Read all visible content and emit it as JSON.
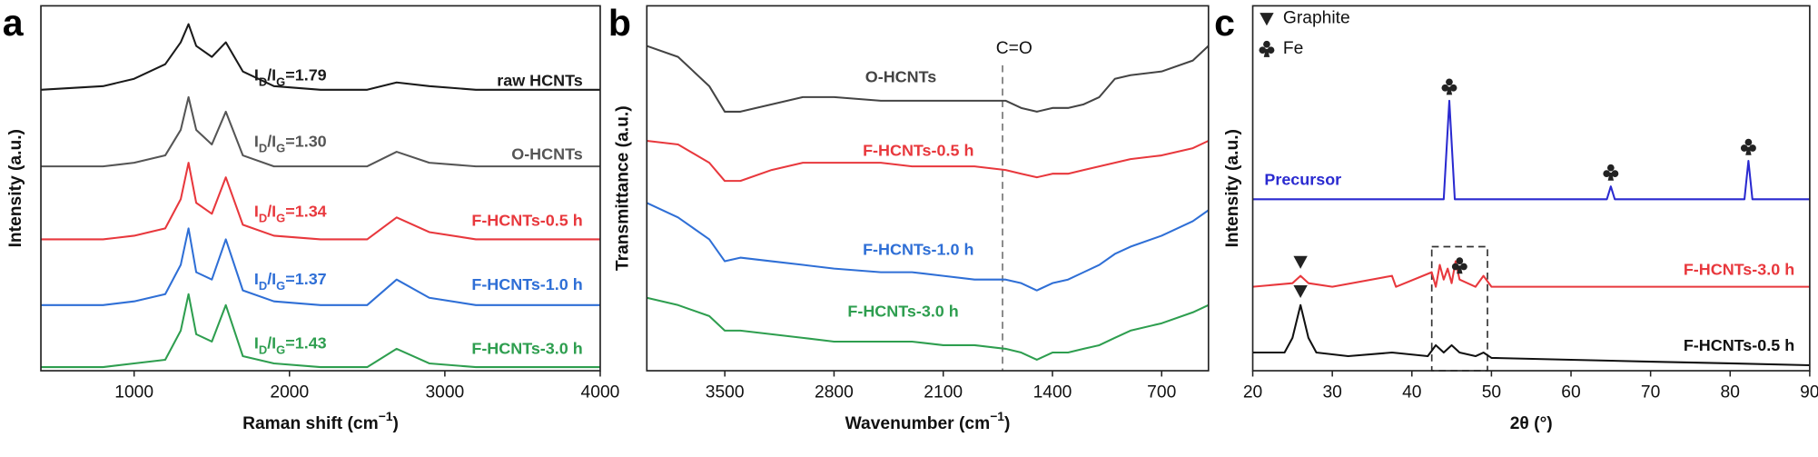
{
  "chart_data": [
    {
      "type": "line",
      "label": "a",
      "xlabel": [
        {
          "text": "Raman shift (cm"
        },
        {
          "text": "−1",
          "sup": true
        },
        {
          "text": ")"
        }
      ],
      "ylabel": "Intensity (a.u.)",
      "xlim": [
        400,
        4000
      ],
      "xticks": [
        1000,
        2000,
        3000,
        4000
      ],
      "ylim": [
        0,
        100
      ],
      "x": [
        400,
        800,
        1000,
        1200,
        1300,
        1350,
        1400,
        1500,
        1590,
        1700,
        1900,
        2200,
        2500,
        2690,
        2900,
        3200,
        3600,
        4000
      ],
      "series": [
        {
          "name": "raw HCNTs",
          "color": "#1a1a1a",
          "values": [
            77,
            78,
            80,
            84,
            90,
            95,
            89,
            86,
            90,
            82,
            78,
            77,
            77,
            79,
            78,
            77,
            77,
            77
          ],
          "annotation": [
            {
              "text": "I"
            },
            {
              "text": "D",
              "sub": true
            },
            {
              "text": "/I"
            },
            {
              "text": "G",
              "sub": true
            },
            {
              "text": "=1.79"
            }
          ]
        },
        {
          "name": "O-HCNTs",
          "color": "#555555",
          "values": [
            56,
            56,
            57,
            59,
            66,
            75,
            66,
            62,
            71,
            59,
            56,
            56,
            56,
            60,
            57,
            56,
            56,
            56
          ],
          "annotation": [
            {
              "text": "I"
            },
            {
              "text": "D",
              "sub": true
            },
            {
              "text": "/I"
            },
            {
              "text": "G",
              "sub": true
            },
            {
              "text": "=1.30"
            }
          ]
        },
        {
          "name": "F-HCNTs-0.5 h",
          "color": "#e8383d",
          "values": [
            36,
            36,
            37,
            39,
            47,
            57,
            46,
            43,
            53,
            40,
            37,
            36,
            36,
            42,
            38,
            36,
            36,
            36
          ],
          "annotation": [
            {
              "text": "I"
            },
            {
              "text": "D",
              "sub": true
            },
            {
              "text": "/I"
            },
            {
              "text": "G",
              "sub": true
            },
            {
              "text": "=1.34"
            }
          ]
        },
        {
          "name": "F-HCNTs-1.0 h",
          "color": "#2f6fd6",
          "values": [
            18,
            18,
            19,
            21,
            29,
            39,
            27,
            25,
            36,
            22,
            19,
            18,
            18,
            25,
            20,
            18,
            18,
            18
          ],
          "annotation": [
            {
              "text": "I"
            },
            {
              "text": "D",
              "sub": true
            },
            {
              "text": "/I"
            },
            {
              "text": "G",
              "sub": true
            },
            {
              "text": "=1.37"
            }
          ]
        },
        {
          "name": "F-HCNTs-3.0 h",
          "color": "#2e9e4f",
          "values": [
            1,
            1,
            2,
            3,
            11,
            21,
            10,
            8,
            18,
            4,
            2,
            1,
            1,
            6,
            2,
            1,
            1,
            1
          ],
          "annotation": [
            {
              "text": "I"
            },
            {
              "text": "D",
              "sub": true
            },
            {
              "text": "/I"
            },
            {
              "text": "G",
              "sub": true
            },
            {
              "text": "=1.43"
            }
          ]
        }
      ]
    },
    {
      "type": "line",
      "label": "b",
      "xlabel": [
        {
          "text": "Wavenumber (cm"
        },
        {
          "text": "−1",
          "sup": true
        },
        {
          "text": ")"
        }
      ],
      "ylabel": "Transmittance (a.u.)",
      "xlim": [
        4000,
        400
      ],
      "xticks": [
        3500,
        2800,
        2100,
        1400,
        700
      ],
      "ylim": [
        0,
        100
      ],
      "annotations": [
        {
          "text": "C=O",
          "x": 1720
        }
      ],
      "x": [
        4000,
        3800,
        3600,
        3500,
        3400,
        3200,
        3000,
        2800,
        2500,
        2300,
        2100,
        1900,
        1700,
        1600,
        1500,
        1400,
        1300,
        1200,
        1100,
        1000,
        900,
        700,
        500,
        400
      ],
      "series": [
        {
          "name": "O-HCNTs",
          "color": "#444444",
          "values": [
            89,
            86,
            78,
            71,
            71,
            73,
            75,
            75,
            74,
            74,
            74,
            74,
            74,
            72,
            71,
            72,
            72,
            73,
            75,
            80,
            81,
            82,
            85,
            89
          ]
        },
        {
          "name": "F-HCNTs-0.5 h",
          "color": "#e8383d",
          "values": [
            63,
            62,
            57,
            52,
            52,
            55,
            57,
            57,
            57,
            56,
            56,
            56,
            55,
            54,
            53,
            54,
            54,
            55,
            56,
            57,
            58,
            59,
            61,
            63
          ]
        },
        {
          "name": "F-HCNTs-1.0 h",
          "color": "#2f6fd6",
          "values": [
            46,
            42,
            36,
            30,
            31,
            30,
            29,
            28,
            27,
            27,
            26,
            25,
            25,
            24,
            22,
            24,
            25,
            27,
            29,
            32,
            34,
            37,
            41,
            44
          ]
        },
        {
          "name": "F-HCNTs-3.0 h",
          "color": "#2e9e4f",
          "values": [
            20,
            18,
            15,
            11,
            11,
            10,
            9,
            8,
            8,
            8,
            7,
            7,
            6,
            5,
            3,
            5,
            5,
            6,
            7,
            9,
            11,
            13,
            16,
            18
          ]
        }
      ]
    },
    {
      "type": "line",
      "label": "c",
      "xlabel": [
        {
          "text": "2θ (°)"
        }
      ],
      "ylabel": "Intensity (a.u.)",
      "xlim": [
        20,
        90
      ],
      "xticks": [
        20,
        30,
        40,
        50,
        60,
        70,
        80,
        90
      ],
      "ylim": [
        0,
        100
      ],
      "legend": [
        {
          "symbol": "triangle",
          "text": "Graphite"
        },
        {
          "symbol": "club",
          "text": "Fe"
        }
      ],
      "highlight": {
        "xlim": [
          42.5,
          49.5
        ],
        "ylim": [
          0,
          34
        ]
      },
      "series": [
        {
          "name": "Precursor",
          "color": "#2a2ad0",
          "x": [
            20,
            30,
            40,
            44,
            44.7,
            45.4,
            50,
            60,
            64.5,
            65,
            65.5,
            70,
            80,
            81.8,
            82.3,
            82.8,
            85,
            90
          ],
          "values": [
            47,
            47,
            47,
            47,
            74,
            47,
            47,
            47,
            47,
            50.5,
            47,
            47,
            47,
            47,
            57.5,
            47,
            47,
            47
          ],
          "markers": [
            {
              "symbol": "club",
              "x": 44.7
            },
            {
              "symbol": "club",
              "x": 65
            },
            {
              "symbol": "club",
              "x": 82.3
            }
          ]
        },
        {
          "name": "F-HCNTs-3.0 h",
          "color": "#e8383d",
          "x": [
            20,
            25,
            26,
            27,
            30,
            37.5,
            38,
            42.5,
            43,
            43.5,
            44,
            44.5,
            45,
            45.5,
            46,
            48,
            49,
            50,
            60,
            70,
            80,
            90
          ],
          "values": [
            23,
            24,
            26,
            24,
            23,
            26,
            23,
            27,
            23,
            29,
            25,
            28,
            24,
            30,
            25,
            23,
            26,
            23,
            23,
            23,
            23,
            23
          ],
          "markers": [
            {
              "symbol": "triangle",
              "x": 26
            },
            {
              "symbol": "club",
              "x": 46
            }
          ]
        },
        {
          "name": "F-HCNTs-0.5 h",
          "color": "#111111",
          "x": [
            20,
            24,
            25,
            26,
            27,
            28,
            32,
            37.5,
            42,
            43,
            44,
            45,
            46,
            48,
            49,
            50,
            60,
            70,
            80,
            90
          ],
          "values": [
            5,
            5,
            9,
            18,
            9,
            5,
            4,
            5,
            4,
            7,
            5,
            7,
            5,
            4,
            5,
            3.5,
            3,
            2.5,
            2,
            1.5
          ],
          "markers": [
            {
              "symbol": "triangle",
              "x": 26
            }
          ]
        }
      ]
    }
  ]
}
